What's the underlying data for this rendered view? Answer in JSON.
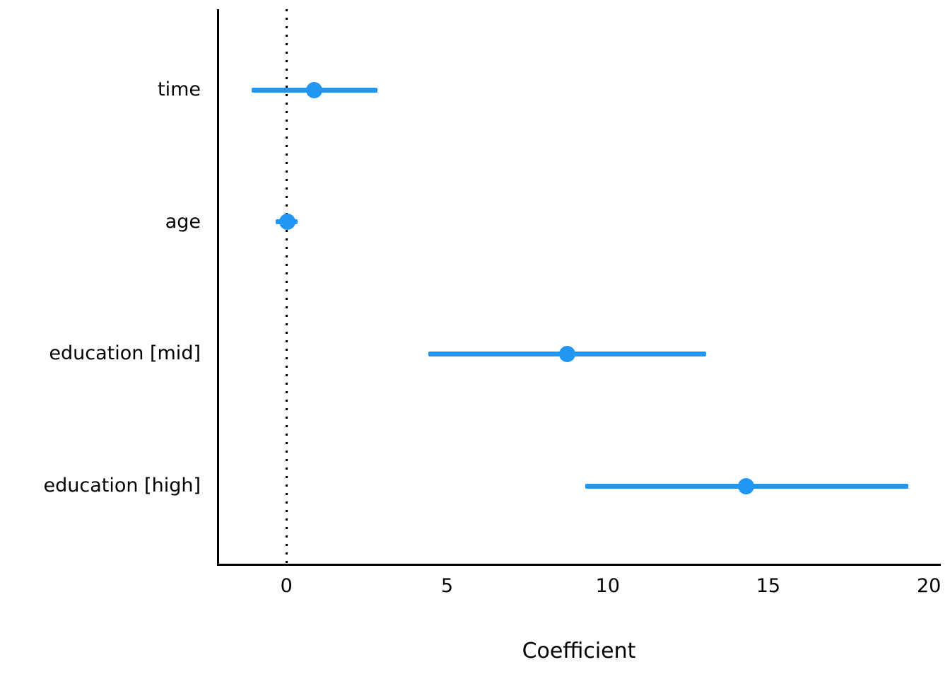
{
  "chart_data": {
    "type": "scatter",
    "subtype": "coefficient-dot-whisker",
    "title": "",
    "xlabel": "Coefficient",
    "ylabel": "",
    "xlim": [
      -2.14,
      20.37
    ],
    "xticks": [
      0,
      5,
      10,
      15,
      20
    ],
    "reference_line_x": 0,
    "grid": false,
    "legend": "none",
    "point_color": "#2196F3",
    "axis_color": "#000000",
    "categories": [
      "time",
      "age",
      "education [mid]",
      "education [high]"
    ],
    "series": [
      {
        "label": "time",
        "estimate": 0.86,
        "ci_low": -1.08,
        "ci_high": 2.84
      },
      {
        "label": "age",
        "estimate": 0.02,
        "ci_low": -0.33,
        "ci_high": 0.35
      },
      {
        "label": "education [mid]",
        "estimate": 8.74,
        "ci_low": 4.41,
        "ci_high": 13.06
      },
      {
        "label": "education [high]",
        "estimate": 14.3,
        "ci_low": 9.3,
        "ci_high": 19.35
      }
    ]
  }
}
